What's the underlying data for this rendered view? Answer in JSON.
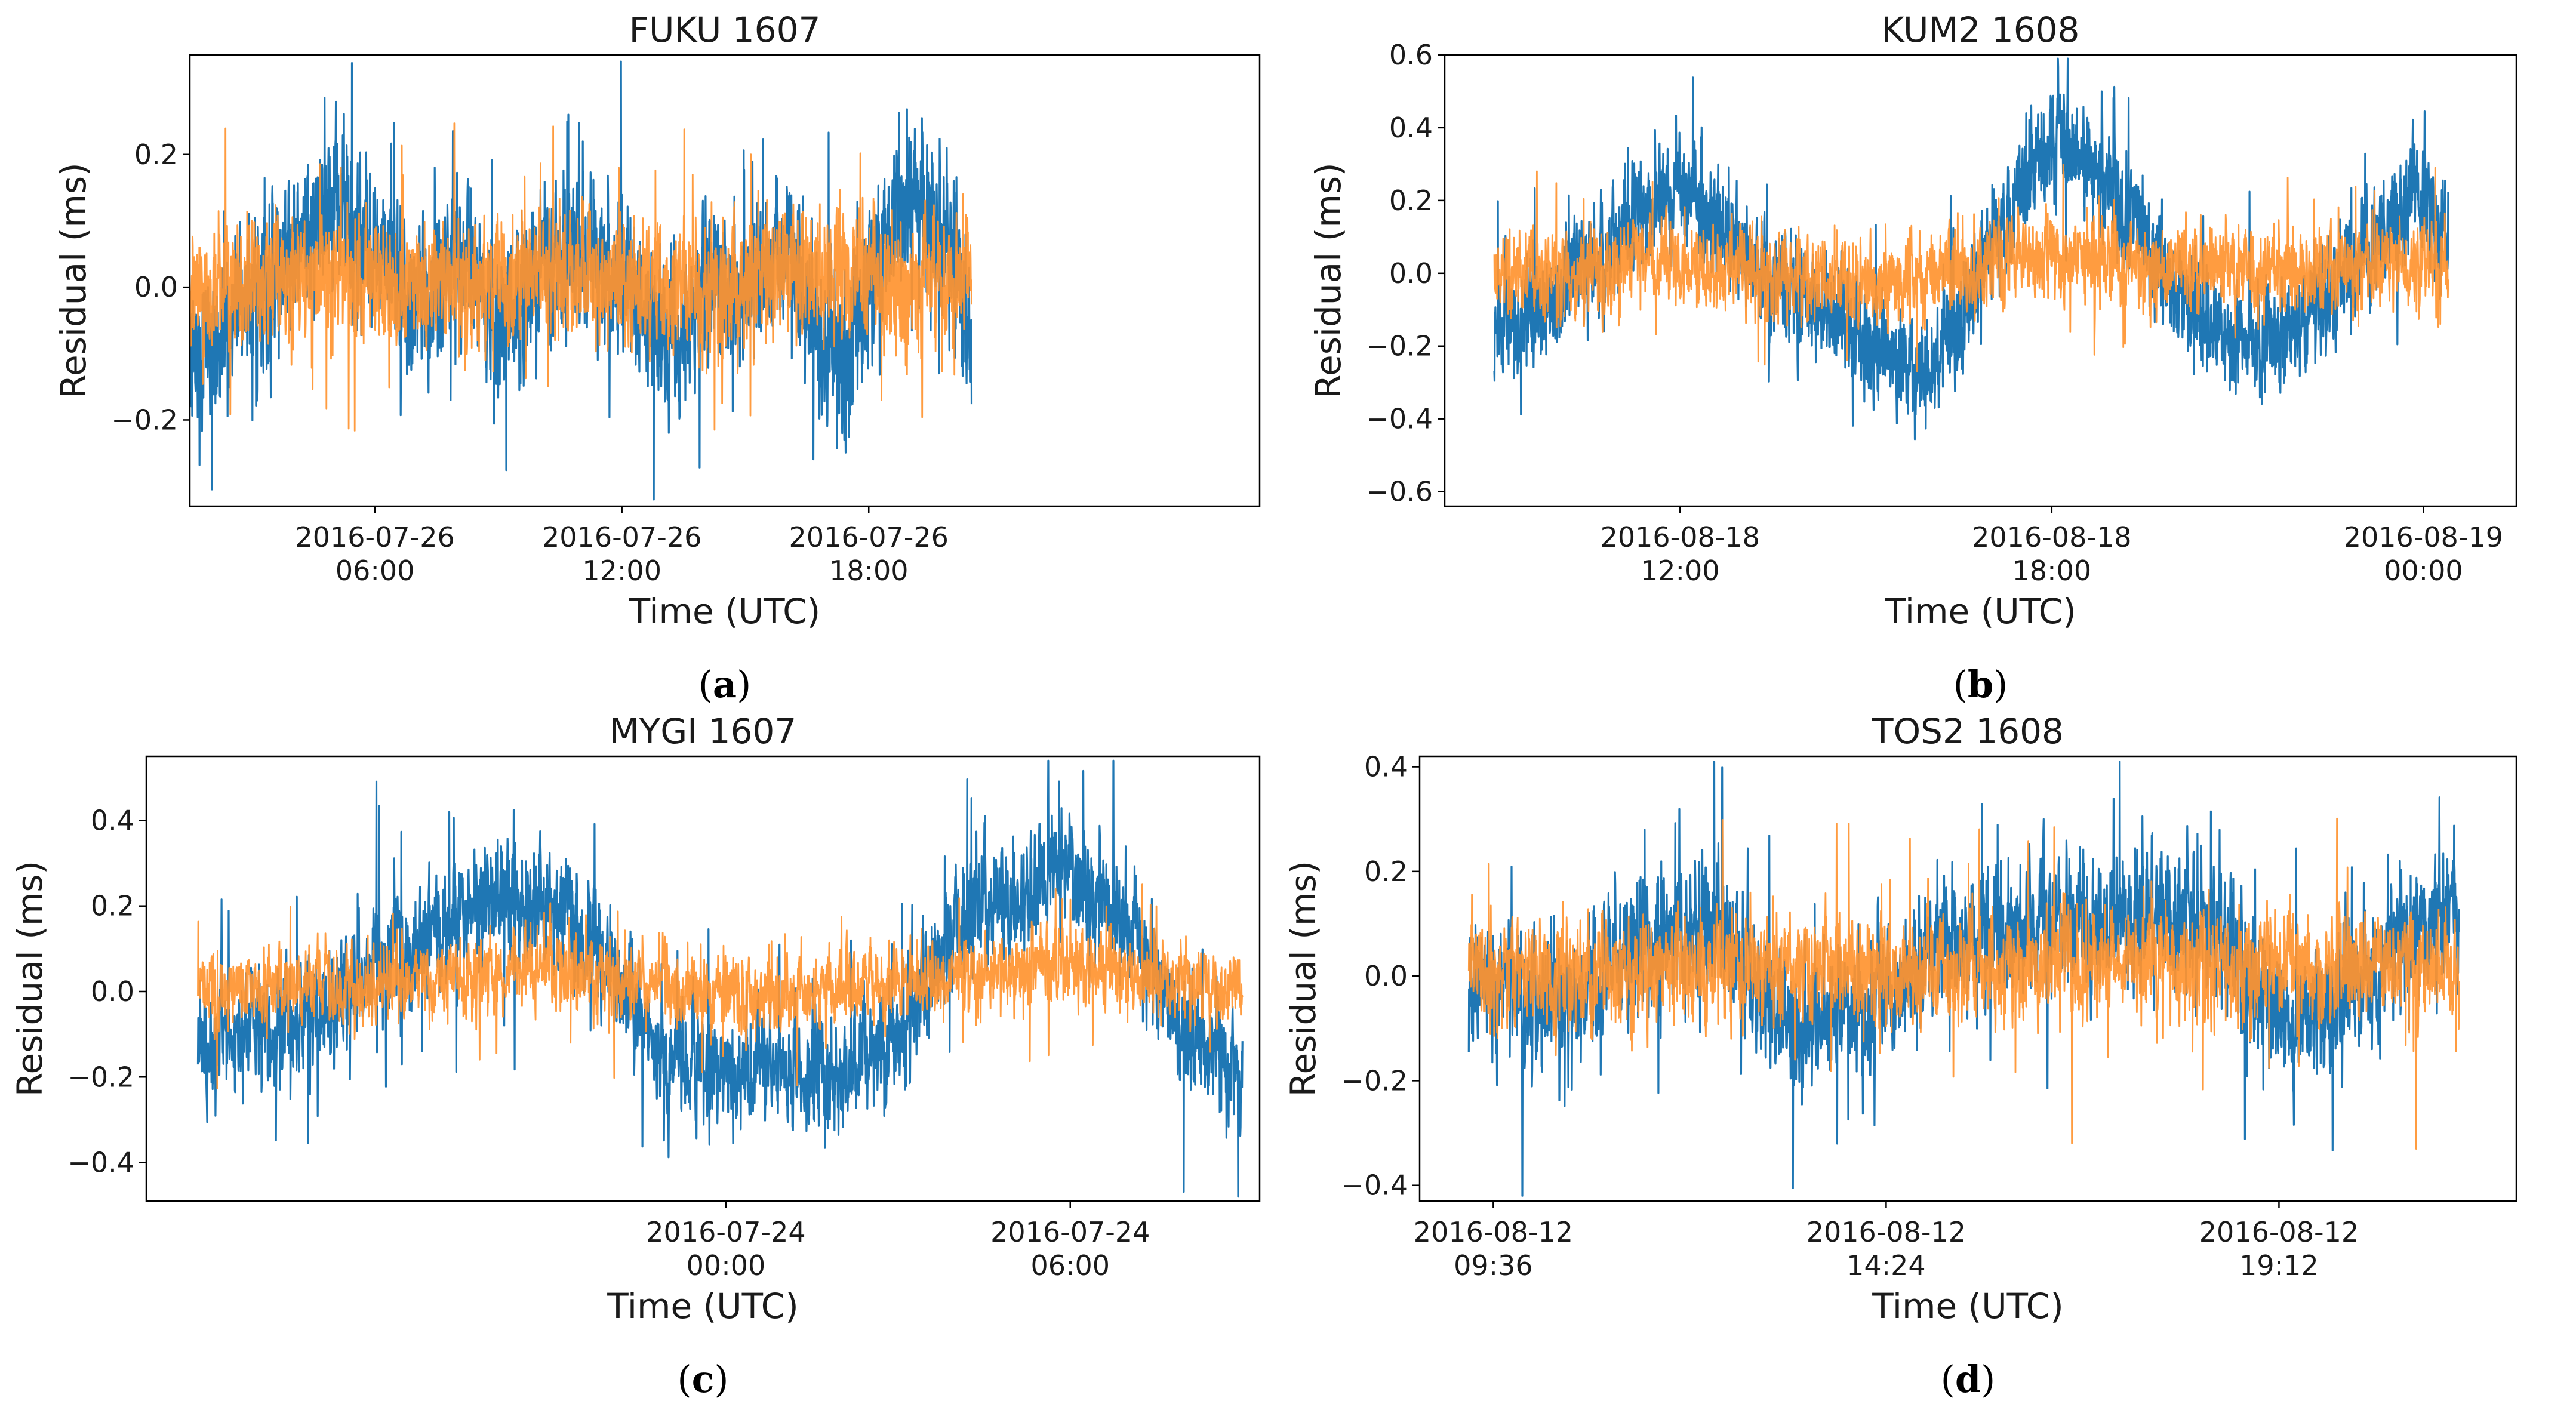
{
  "figure": {
    "colors": {
      "series_a": "#1f77b4",
      "series_b": "#ff9430"
    }
  },
  "chart_data": [
    {
      "type": "line",
      "panel": "a",
      "caption": "(a)",
      "title": "FUKU 1607",
      "xlabel": "Time (UTC)",
      "ylabel": "Residual (ms)",
      "x_range_hours": [
        1.5,
        27.5
      ],
      "ylim": [
        -0.33,
        0.35
      ],
      "yticks": [
        -0.2,
        0.0,
        0.2
      ],
      "ytick_labels": [
        "−0.2",
        "0.0",
        "0.2"
      ],
      "xticks": [
        6,
        12,
        18
      ],
      "xtick_labels": [
        [
          "2016-07-26",
          "06:00"
        ],
        [
          "2016-07-26",
          "12:00"
        ],
        [
          "2016-07-26",
          "18:00"
        ]
      ],
      "series": [
        {
          "name": "series 1 (blue)",
          "color": "#1f77b4",
          "times": [
            1.5,
            3,
            4,
            5,
            6,
            7,
            8,
            9,
            10,
            11,
            12,
            13,
            14,
            15,
            16,
            17,
            17.5,
            18,
            19,
            20,
            20.5
          ],
          "values": [
            -0.14,
            -0.02,
            0.05,
            0.13,
            0.05,
            -0.02,
            0.07,
            -0.05,
            0.03,
            0.04,
            0.02,
            -0.08,
            -0.01,
            0.0,
            0.05,
            -0.12,
            -0.1,
            0.02,
            0.15,
            0.05,
            -0.05
          ],
          "spread": 0.09
        },
        {
          "name": "series 2 (orange)",
          "color": "#ff9430",
          "times": [
            1.5,
            4,
            7,
            10,
            13,
            16,
            19,
            20.5
          ],
          "values": [
            -0.01,
            0.02,
            0.0,
            0.02,
            -0.01,
            0.02,
            0.0,
            0.01
          ],
          "spread": 0.07
        }
      ]
    },
    {
      "type": "line",
      "panel": "b",
      "caption": "(b)",
      "title": "KUM2 1608",
      "xlabel": "Time (UTC)",
      "ylabel": "Residual (ms)",
      "x_range_hours": [
        8.2,
        25.5
      ],
      "ylim": [
        -0.64,
        0.6
      ],
      "yticks": [
        -0.6,
        -0.4,
        -0.2,
        0.0,
        0.2,
        0.4,
        0.6
      ],
      "ytick_labels": [
        "−0.6",
        "−0.4",
        "−0.2",
        "0.0",
        "0.2",
        "0.4",
        "0.6"
      ],
      "xticks": [
        12,
        18,
        24
      ],
      "xtick_labels": [
        [
          "2016-08-18",
          "12:00"
        ],
        [
          "2016-08-18",
          "18:00"
        ],
        [
          "2016-08-19",
          "00:00"
        ]
      ],
      "series": [
        {
          "name": "series 1 (blue)",
          "color": "#1f77b4",
          "times": [
            9,
            10,
            11,
            12,
            13,
            14,
            15,
            16,
            17,
            18,
            19,
            20,
            21,
            22,
            23,
            24,
            24.4
          ],
          "values": [
            -0.2,
            -0.05,
            0.1,
            0.25,
            0.05,
            -0.05,
            -0.2,
            -0.3,
            0.05,
            0.38,
            0.25,
            -0.05,
            -0.2,
            -0.15,
            0.05,
            0.25,
            0.1
          ],
          "spread": 0.12
        },
        {
          "name": "series 2 (orange)",
          "color": "#ff9430",
          "times": [
            9,
            12,
            15,
            18,
            21,
            24.4
          ],
          "values": [
            0.0,
            0.03,
            -0.03,
            0.05,
            0.0,
            0.03
          ],
          "spread": 0.09
        }
      ]
    },
    {
      "type": "line",
      "panel": "c",
      "caption": "(c)",
      "title": "MYGI 1607",
      "xlabel": "Time (UTC)",
      "ylabel": "Residual (ms)",
      "x_range_hours": [
        -10.1,
        9.3
      ],
      "ylim": [
        -0.49,
        0.55
      ],
      "yticks": [
        -0.4,
        -0.2,
        0.0,
        0.2,
        0.4
      ],
      "ytick_labels": [
        "−0.4",
        "−0.2",
        "0.0",
        "0.2",
        "0.4"
      ],
      "xticks": [
        0,
        6
      ],
      "xtick_labels": [
        [
          "2016-07-24",
          "00:00"
        ],
        [
          "2016-07-24",
          "06:00"
        ]
      ],
      "series": [
        {
          "name": "series 1 (blue)",
          "color": "#1f77b4",
          "times": [
            -9.2,
            -8,
            -7,
            -6,
            -5,
            -4,
            -3,
            -2,
            -1,
            0,
            1,
            2,
            3,
            4,
            5,
            6,
            7,
            8,
            9
          ],
          "values": [
            -0.12,
            -0.1,
            -0.05,
            0.08,
            0.15,
            0.25,
            0.2,
            0.05,
            -0.15,
            -0.2,
            -0.18,
            -0.2,
            -0.1,
            0.15,
            0.22,
            0.3,
            0.15,
            -0.1,
            -0.2
          ],
          "spread": 0.11
        },
        {
          "name": "series 2 (orange)",
          "color": "#ff9430",
          "times": [
            -9.2,
            -6,
            -3,
            0,
            3,
            6,
            9
          ],
          "values": [
            0.0,
            0.02,
            0.05,
            -0.01,
            0.02,
            0.06,
            0.0
          ],
          "spread": 0.07
        }
      ]
    },
    {
      "type": "line",
      "panel": "d",
      "caption": "(d)",
      "title": "TOS2 1608",
      "xlabel": "Time (UTC)",
      "ylabel": "Residual (ms)",
      "x_range_hours": [
        8.7,
        22.1
      ],
      "ylim": [
        -0.43,
        0.42
      ],
      "yticks": [
        -0.4,
        -0.2,
        0.0,
        0.2,
        0.4
      ],
      "ytick_labels": [
        "−0.4",
        "−0.2",
        "0.0",
        "0.2",
        "0.4"
      ],
      "xticks": [
        9.6,
        14.4,
        19.2
      ],
      "xtick_labels": [
        [
          "2016-08-12",
          "09:36"
        ],
        [
          "2016-08-12",
          "14:24"
        ],
        [
          "2016-08-12",
          "19:12"
        ]
      ],
      "series": [
        {
          "name": "series 1 (blue)",
          "color": "#1f77b4",
          "times": [
            9.3,
            10.3,
            11.3,
            12.3,
            13.3,
            14.3,
            15.3,
            16.3,
            17.3,
            18.3,
            19.3,
            20.3,
            21.4
          ],
          "values": [
            -0.02,
            -0.05,
            0.05,
            0.1,
            -0.1,
            -0.05,
            0.08,
            0.1,
            0.12,
            0.1,
            -0.1,
            0.0,
            0.15
          ],
          "spread": 0.1
        },
        {
          "name": "series 2 (orange)",
          "color": "#ff9430",
          "times": [
            9.3,
            12,
            15,
            18,
            21.4
          ],
          "values": [
            0.0,
            0.02,
            0.0,
            0.03,
            0.0
          ],
          "spread": 0.08
        }
      ]
    }
  ]
}
